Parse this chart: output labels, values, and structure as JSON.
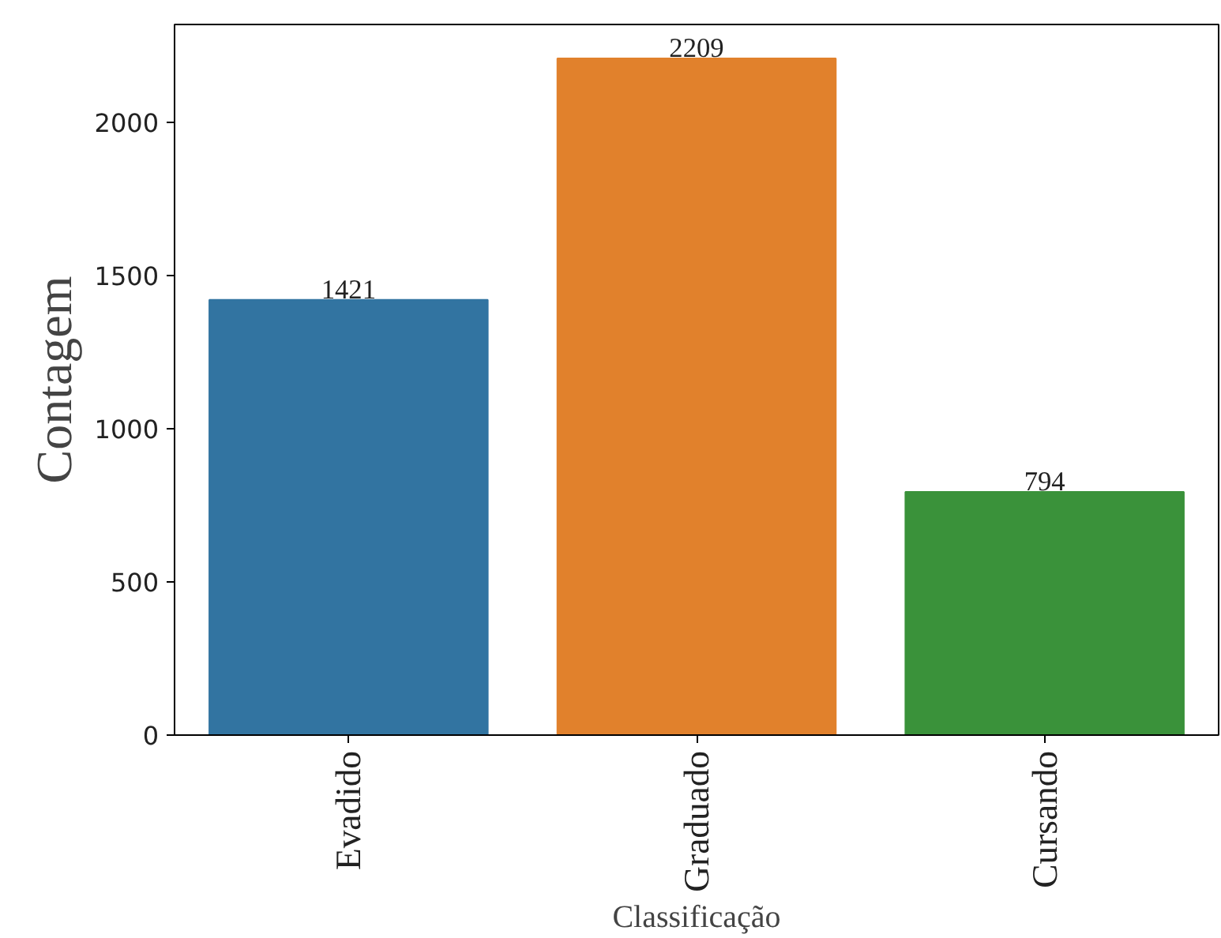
{
  "chart_data": {
    "type": "bar",
    "xlabel": "Classificação",
    "ylabel": "Contagem",
    "categories": [
      "Evadido",
      "Graduado",
      "Cursando"
    ],
    "values": [
      1421,
      2209,
      794
    ],
    "colors": [
      "#3274a1",
      "#e1812c",
      "#3a923a"
    ],
    "data_labels": true,
    "ylim": [
      0,
      2320
    ],
    "yticks": [
      0,
      500,
      1000,
      1500,
      2000
    ],
    "grid": false
  }
}
